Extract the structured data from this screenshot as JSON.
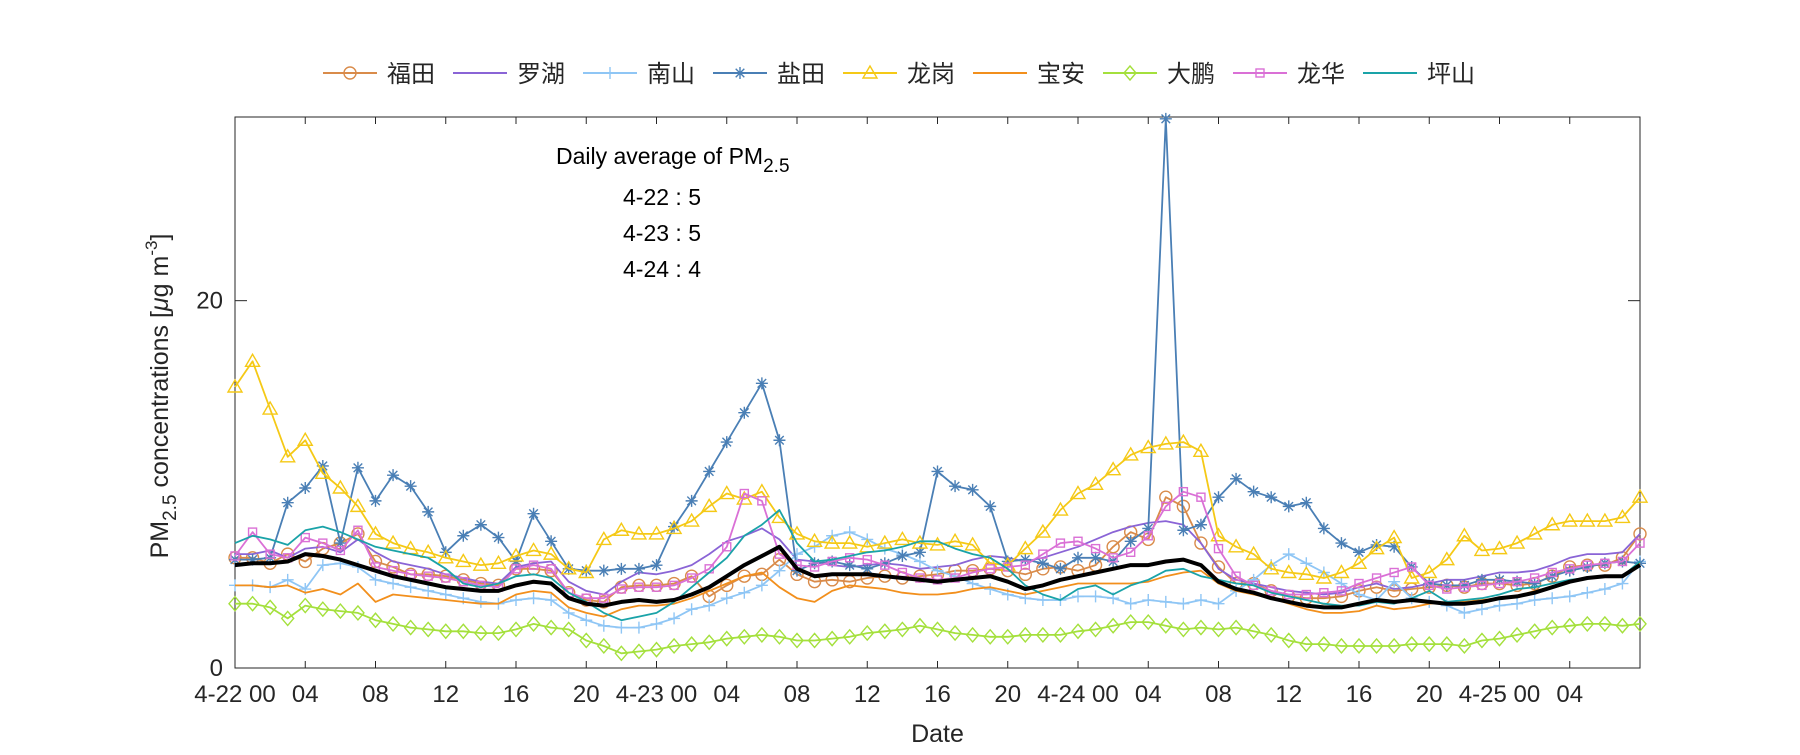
{
  "chart_data": {
    "type": "line",
    "title": "",
    "xlabel": "Date",
    "ylabel": {
      "prefix": "PM",
      "sub": "2.5",
      "suffix": " concentrations [",
      "mu": "μ",
      "unit": "g m",
      "sup": "-3",
      "close": "]"
    },
    "xlim": [
      0,
      80
    ],
    "ylim": [
      0,
      30
    ],
    "yticks": [
      0,
      20
    ],
    "xticks": [
      {
        "x": 0,
        "label": "4-22 00"
      },
      {
        "x": 4,
        "label": "04"
      },
      {
        "x": 8,
        "label": "08"
      },
      {
        "x": 12,
        "label": "12"
      },
      {
        "x": 16,
        "label": "16"
      },
      {
        "x": 20,
        "label": "20"
      },
      {
        "x": 24,
        "label": "4-23 00"
      },
      {
        "x": 28,
        "label": "04"
      },
      {
        "x": 32,
        "label": "08"
      },
      {
        "x": 36,
        "label": "12"
      },
      {
        "x": 40,
        "label": "16"
      },
      {
        "x": 44,
        "label": "20"
      },
      {
        "x": 48,
        "label": "4-24 00"
      },
      {
        "x": 52,
        "label": "04"
      },
      {
        "x": 56,
        "label": "08"
      },
      {
        "x": 60,
        "label": "12"
      },
      {
        "x": 64,
        "label": "16"
      },
      {
        "x": 68,
        "label": "20"
      },
      {
        "x": 72,
        "label": "4-25 00"
      },
      {
        "x": 76,
        "label": "04"
      }
    ],
    "legend_position": "top",
    "annotation": {
      "heading_prefix": "Daily average of PM",
      "heading_sub": "2.5",
      "lines": [
        "4-22 : 5",
        "4-23 : 5",
        "4-24 : 4"
      ]
    },
    "series": [
      {
        "name": "福田",
        "color": "#d98b4a",
        "marker": "circle",
        "values": [
          6.0,
          6.0,
          5.7,
          6.2,
          5.8,
          6.5,
          6.8,
          7.3,
          5.8,
          5.5,
          5.1,
          5.1,
          5.0,
          4.8,
          4.6,
          4.5,
          5.4,
          5.4,
          5.3,
          4.1,
          3.7,
          3.6,
          4.4,
          4.5,
          4.5,
          4.6,
          5.0,
          3.9,
          4.5,
          5.0,
          5.1,
          5.9,
          5.1,
          4.7,
          4.8,
          4.7,
          4.9,
          5.0,
          4.9,
          5.0,
          5.1,
          5.3,
          5.3,
          5.4,
          5.3,
          5.1,
          5.4,
          5.5,
          5.3,
          5.6,
          6.6,
          7.4,
          7.0,
          9.3,
          8.8,
          6.8,
          5.5,
          4.6,
          4.6,
          4.2,
          3.9,
          3.8,
          3.8,
          3.9,
          4.2,
          4.4,
          4.2,
          4.3,
          4.4,
          4.5,
          4.4,
          4.6,
          4.6,
          4.5,
          4.6,
          5.0,
          5.5,
          5.6,
          5.6,
          6.0,
          7.3
        ]
      },
      {
        "name": "罗湖",
        "color": "#8a64d6",
        "marker": "none",
        "values": [
          6.2,
          6.2,
          6.4,
          6.0,
          6.5,
          6.6,
          6.3,
          7.0,
          6.3,
          5.8,
          5.6,
          5.4,
          5.1,
          4.9,
          4.7,
          4.6,
          5.5,
          5.7,
          5.8,
          4.7,
          4.2,
          4.0,
          4.7,
          5.2,
          5.1,
          5.3,
          5.6,
          6.2,
          6.9,
          7.2,
          7.6,
          7.0,
          5.9,
          5.8,
          5.6,
          5.5,
          5.6,
          5.7,
          5.6,
          5.4,
          5.5,
          5.6,
          5.9,
          6.1,
          6.0,
          5.8,
          6.0,
          6.3,
          6.6,
          7.0,
          7.4,
          7.7,
          7.9,
          8.0,
          7.8,
          6.8,
          5.4,
          4.8,
          4.6,
          4.4,
          4.2,
          4.1,
          4.0,
          4.1,
          4.4,
          4.6,
          4.3,
          4.4,
          4.6,
          4.8,
          4.8,
          5.0,
          5.2,
          5.2,
          5.3,
          5.6,
          6.0,
          6.2,
          6.2,
          6.3,
          7.3
        ]
      },
      {
        "name": "南山",
        "color": "#8fc6f5",
        "marker": "plus",
        "values": [
          4.5,
          4.5,
          4.4,
          4.8,
          4.3,
          5.6,
          5.7,
          5.5,
          4.8,
          4.6,
          4.4,
          4.2,
          4.0,
          3.8,
          3.6,
          3.5,
          3.7,
          3.8,
          3.7,
          3.0,
          2.6,
          2.3,
          2.2,
          2.2,
          2.4,
          2.7,
          3.2,
          3.4,
          3.8,
          4.1,
          4.5,
          5.3,
          6.2,
          6.6,
          7.2,
          7.4,
          7.0,
          6.5,
          6.2,
          5.8,
          5.3,
          5.0,
          4.6,
          4.3,
          4.0,
          3.8,
          3.7,
          3.7,
          3.9,
          3.9,
          3.8,
          3.5,
          3.7,
          3.6,
          3.5,
          3.7,
          3.5,
          4.2,
          4.8,
          5.6,
          6.2,
          5.7,
          5.2,
          4.6,
          4.0,
          3.7,
          4.7,
          3.8,
          3.6,
          3.4,
          3.0,
          3.2,
          3.4,
          3.5,
          3.7,
          3.8,
          3.9,
          4.1,
          4.3,
          4.6,
          5.8
        ]
      },
      {
        "name": "盐田",
        "color": "#4a7fb5",
        "marker": "star",
        "values": [
          5.9,
          5.9,
          6.0,
          9.0,
          9.8,
          11.0,
          6.8,
          10.9,
          9.1,
          10.5,
          9.9,
          8.5,
          6.3,
          7.2,
          7.8,
          7.1,
          5.8,
          8.4,
          6.9,
          5.4,
          5.3,
          5.3,
          5.4,
          5.4,
          5.6,
          7.7,
          9.1,
          10.7,
          12.3,
          13.9,
          15.5,
          12.4,
          5.3,
          5.7,
          5.8,
          5.6,
          5.4,
          5.7,
          6.1,
          6.3,
          10.7,
          9.9,
          9.7,
          8.8,
          5.8,
          5.9,
          5.7,
          5.4,
          6.0,
          6.0,
          5.8,
          6.9,
          7.6,
          29.9,
          7.5,
          7.8,
          9.3,
          10.3,
          9.6,
          9.3,
          8.8,
          9.0,
          7.6,
          6.8,
          6.3,
          6.7,
          6.6,
          5.5,
          4.6,
          4.5,
          4.5,
          4.8,
          4.8,
          4.7,
          4.6,
          5.0,
          5.3,
          5.5,
          5.7,
          5.8,
          5.7
        ]
      },
      {
        "name": "龙岗",
        "color": "#f5c916",
        "marker": "triangle",
        "values": [
          15.3,
          16.7,
          14.1,
          11.5,
          12.4,
          10.6,
          9.8,
          8.8,
          7.3,
          6.8,
          6.5,
          6.3,
          6.0,
          5.8,
          5.6,
          5.7,
          6.1,
          6.4,
          6.2,
          5.4,
          5.2,
          7.0,
          7.5,
          7.3,
          7.3,
          7.6,
          8.0,
          8.8,
          9.5,
          9.2,
          9.6,
          8.2,
          7.3,
          6.9,
          6.8,
          6.8,
          6.6,
          6.8,
          7.0,
          6.8,
          6.7,
          6.9,
          6.7,
          5.7,
          5.6,
          6.5,
          7.4,
          8.6,
          9.5,
          10.0,
          10.8,
          11.6,
          12.0,
          12.2,
          12.3,
          11.8,
          7.2,
          6.6,
          6.2,
          5.4,
          5.2,
          5.1,
          4.9,
          5.2,
          5.7,
          6.5,
          7.1,
          4.9,
          5.2,
          5.9,
          7.2,
          6.4,
          6.5,
          6.8,
          7.3,
          7.8,
          8.0,
          8.0,
          8.0,
          8.2,
          9.3
        ]
      },
      {
        "name": "宝安",
        "color": "#f28f1c",
        "marker": "none",
        "values": [
          4.5,
          4.5,
          4.4,
          4.5,
          4.1,
          4.3,
          4.0,
          4.6,
          3.6,
          4.0,
          3.9,
          3.8,
          3.7,
          3.6,
          3.5,
          3.5,
          4.0,
          4.2,
          4.1,
          3.3,
          3.0,
          2.8,
          3.2,
          3.4,
          3.4,
          3.5,
          3.8,
          4.2,
          4.6,
          5.0,
          5.2,
          4.4,
          3.8,
          3.6,
          4.2,
          4.5,
          4.4,
          4.3,
          4.1,
          4.0,
          4.0,
          4.1,
          4.3,
          4.4,
          4.2,
          4.0,
          4.2,
          4.4,
          4.6,
          4.6,
          4.6,
          4.6,
          4.7,
          5.0,
          5.2,
          5.3,
          4.6,
          4.2,
          4.0,
          3.8,
          3.5,
          3.2,
          3.0,
          3.0,
          3.1,
          3.4,
          3.2,
          3.3,
          3.5,
          3.6,
          3.6,
          3.7,
          3.8,
          3.9,
          4.2,
          4.4,
          4.7,
          4.9,
          5.0,
          5.0,
          5.7
        ]
      },
      {
        "name": "大鹏",
        "color": "#a4e03c",
        "marker": "diamond",
        "values": [
          3.5,
          3.5,
          3.3,
          2.7,
          3.4,
          3.2,
          3.1,
          3.0,
          2.6,
          2.4,
          2.2,
          2.1,
          2.0,
          2.0,
          1.9,
          1.9,
          2.1,
          2.4,
          2.2,
          2.1,
          1.5,
          1.2,
          0.8,
          0.9,
          1.0,
          1.2,
          1.3,
          1.4,
          1.6,
          1.7,
          1.8,
          1.7,
          1.5,
          1.5,
          1.6,
          1.7,
          1.9,
          2.0,
          2.1,
          2.3,
          2.1,
          1.9,
          1.8,
          1.7,
          1.7,
          1.8,
          1.8,
          1.8,
          2.0,
          2.1,
          2.3,
          2.5,
          2.5,
          2.3,
          2.1,
          2.2,
          2.1,
          2.2,
          2.0,
          1.8,
          1.5,
          1.3,
          1.3,
          1.2,
          1.2,
          1.2,
          1.2,
          1.3,
          1.3,
          1.3,
          1.2,
          1.5,
          1.6,
          1.8,
          2.0,
          2.2,
          2.3,
          2.4,
          2.4,
          2.3,
          2.4
        ]
      },
      {
        "name": "龙华",
        "color": "#da70d6",
        "marker": "square",
        "values": [
          6.1,
          7.4,
          6.2,
          6.0,
          7.1,
          6.8,
          6.4,
          7.5,
          5.5,
          5.3,
          5.1,
          5.0,
          4.9,
          4.7,
          4.5,
          4.4,
          5.4,
          5.6,
          5.4,
          4.1,
          3.8,
          3.8,
          4.3,
          4.4,
          4.4,
          4.5,
          4.9,
          5.4,
          6.6,
          9.5,
          9.1,
          6.2,
          5.6,
          5.5,
          5.8,
          6.0,
          5.9,
          5.6,
          5.2,
          4.9,
          4.8,
          4.9,
          5.2,
          5.4,
          5.5,
          5.6,
          6.2,
          6.8,
          6.9,
          6.5,
          6.0,
          6.3,
          7.2,
          8.8,
          9.6,
          9.3,
          6.5,
          5.0,
          4.5,
          4.2,
          4.0,
          4.0,
          4.1,
          4.2,
          4.6,
          4.9,
          5.2,
          5.5,
          4.5,
          4.3,
          4.4,
          4.5,
          4.6,
          4.7,
          4.9,
          5.2,
          5.4,
          5.6,
          5.7,
          5.8,
          6.8
        ]
      },
      {
        "name": "坪山",
        "color": "#1aa3a8",
        "marker": "none",
        "values": [
          6.8,
          7.2,
          7.0,
          6.7,
          7.5,
          7.7,
          7.4,
          7.0,
          6.6,
          6.4,
          6.2,
          6.0,
          5.4,
          4.6,
          4.4,
          4.6,
          5.0,
          5.1,
          4.9,
          4.1,
          3.6,
          3.0,
          2.6,
          2.8,
          3.0,
          3.6,
          4.4,
          5.2,
          6.0,
          7.2,
          7.8,
          8.6,
          6.8,
          5.8,
          5.9,
          6.1,
          6.3,
          6.4,
          6.6,
          6.9,
          6.9,
          6.5,
          6.2,
          6.0,
          5.4,
          4.5,
          4.0,
          3.7,
          4.3,
          4.5,
          4.0,
          4.5,
          4.8,
          5.3,
          5.4,
          5.0,
          4.8,
          4.6,
          4.5,
          4.1,
          3.9,
          3.7,
          3.5,
          3.4,
          3.4,
          3.6,
          3.5,
          3.8,
          4.2,
          3.6,
          3.7,
          3.8,
          4.0,
          4.3,
          4.4,
          4.6,
          4.8,
          4.9,
          5.0,
          5.0,
          5.8
        ]
      },
      {
        "name": "",
        "color": "#000000",
        "marker": "none",
        "width": 4,
        "values": [
          5.6,
          5.7,
          5.7,
          5.8,
          6.2,
          6.1,
          5.9,
          5.6,
          5.3,
          5.0,
          4.8,
          4.6,
          4.4,
          4.3,
          4.2,
          4.2,
          4.5,
          4.7,
          4.6,
          3.8,
          3.5,
          3.4,
          3.6,
          3.7,
          3.6,
          3.7,
          4.0,
          4.4,
          5.0,
          5.6,
          6.1,
          6.6,
          5.4,
          5.0,
          5.1,
          5.1,
          5.1,
          5.0,
          4.9,
          4.8,
          4.7,
          4.8,
          4.9,
          5.0,
          4.7,
          4.3,
          4.5,
          4.8,
          5.0,
          5.2,
          5.4,
          5.6,
          5.6,
          5.8,
          5.9,
          5.6,
          4.7,
          4.3,
          4.1,
          3.8,
          3.6,
          3.4,
          3.3,
          3.3,
          3.5,
          3.7,
          3.6,
          3.7,
          3.6,
          3.5,
          3.5,
          3.6,
          3.8,
          3.9,
          4.1,
          4.4,
          4.7,
          4.9,
          5.0,
          5.0,
          5.6
        ]
      }
    ]
  }
}
